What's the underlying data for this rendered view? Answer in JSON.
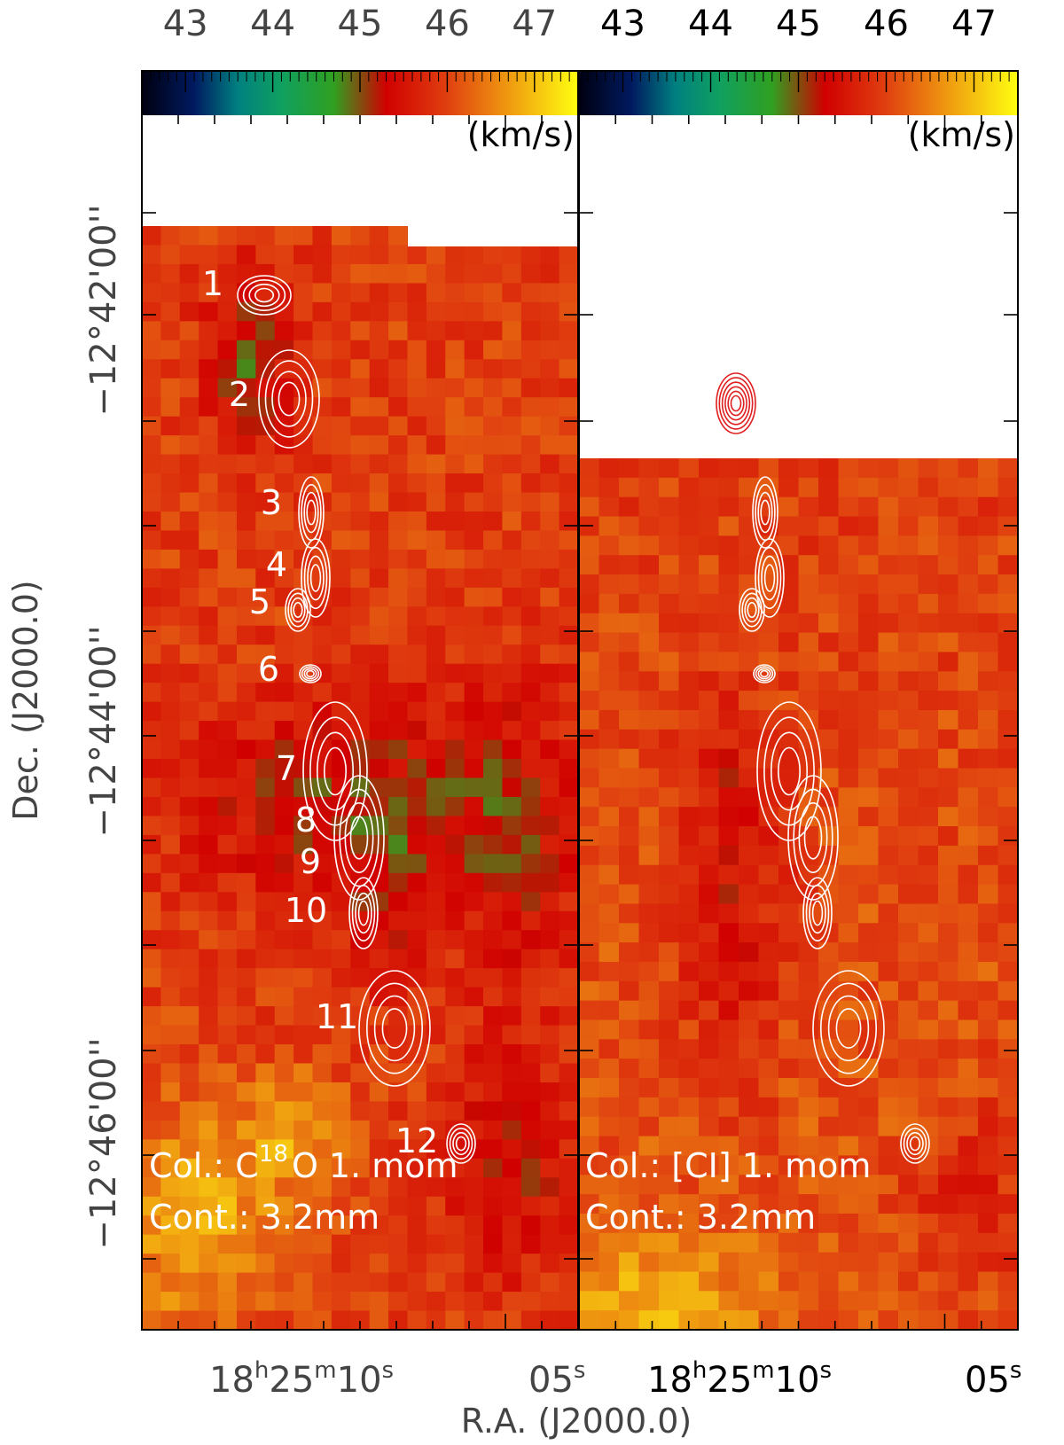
{
  "figure": {
    "xlabel": "R.A. (J2000.0)",
    "ylabel": "Dec. (J2000.0)",
    "colorbar_unit": "(km/s)",
    "colorbar_ticks": [
      "43",
      "44",
      "45",
      "46",
      "47"
    ],
    "colorbar_range": [
      42.5,
      47.5
    ],
    "ra_ticks": [
      {
        "h": "18",
        "m": "25",
        "s": "10"
      },
      {
        "s": "05"
      }
    ],
    "dec_ticks": [
      "−12°42'00''",
      "−12°44'00''",
      "−12°46'00''"
    ]
  },
  "panels": [
    {
      "col_prefix": "Col.: C",
      "col_sup": "18",
      "col_suffix": "O 1. mom",
      "cont": "Cont.: 3.2mm",
      "source_labels": [
        "1",
        "2",
        "3",
        "4",
        "5",
        "6",
        "7",
        "8",
        "9",
        "10",
        "11",
        "12"
      ]
    },
    {
      "col_prefix": "Col.: [CI] 1. mom",
      "col_sup": "",
      "col_suffix": "",
      "cont": "Cont.: 3.2mm",
      "source_labels": []
    }
  ],
  "chart_data": {
    "type": "heatmap",
    "title": "",
    "xlabel": "R.A. (J2000.0)",
    "ylabel": "Dec. (J2000.0)",
    "colorbar": {
      "label": "(km/s)",
      "min": 42.5,
      "max": 47.5,
      "ticks": [
        43,
        44,
        45,
        46,
        47
      ]
    },
    "panels": [
      {
        "color_quantity": "C18O 1. mom",
        "contours": "3.2mm continuum"
      },
      {
        "color_quantity": "[CI] 1. mom",
        "contours": "3.2mm continuum"
      }
    ],
    "x_ticks": [
      "18h25m10s",
      "05s"
    ],
    "y_ticks": [
      "−12°42'00''",
      "−12°44'00''",
      "−12°46'00''"
    ],
    "grid": false,
    "colors": {
      "low": "#000010",
      "mid_green": "#10a050",
      "high_red": "#d00000",
      "top_yellow": "#ffff10"
    }
  }
}
